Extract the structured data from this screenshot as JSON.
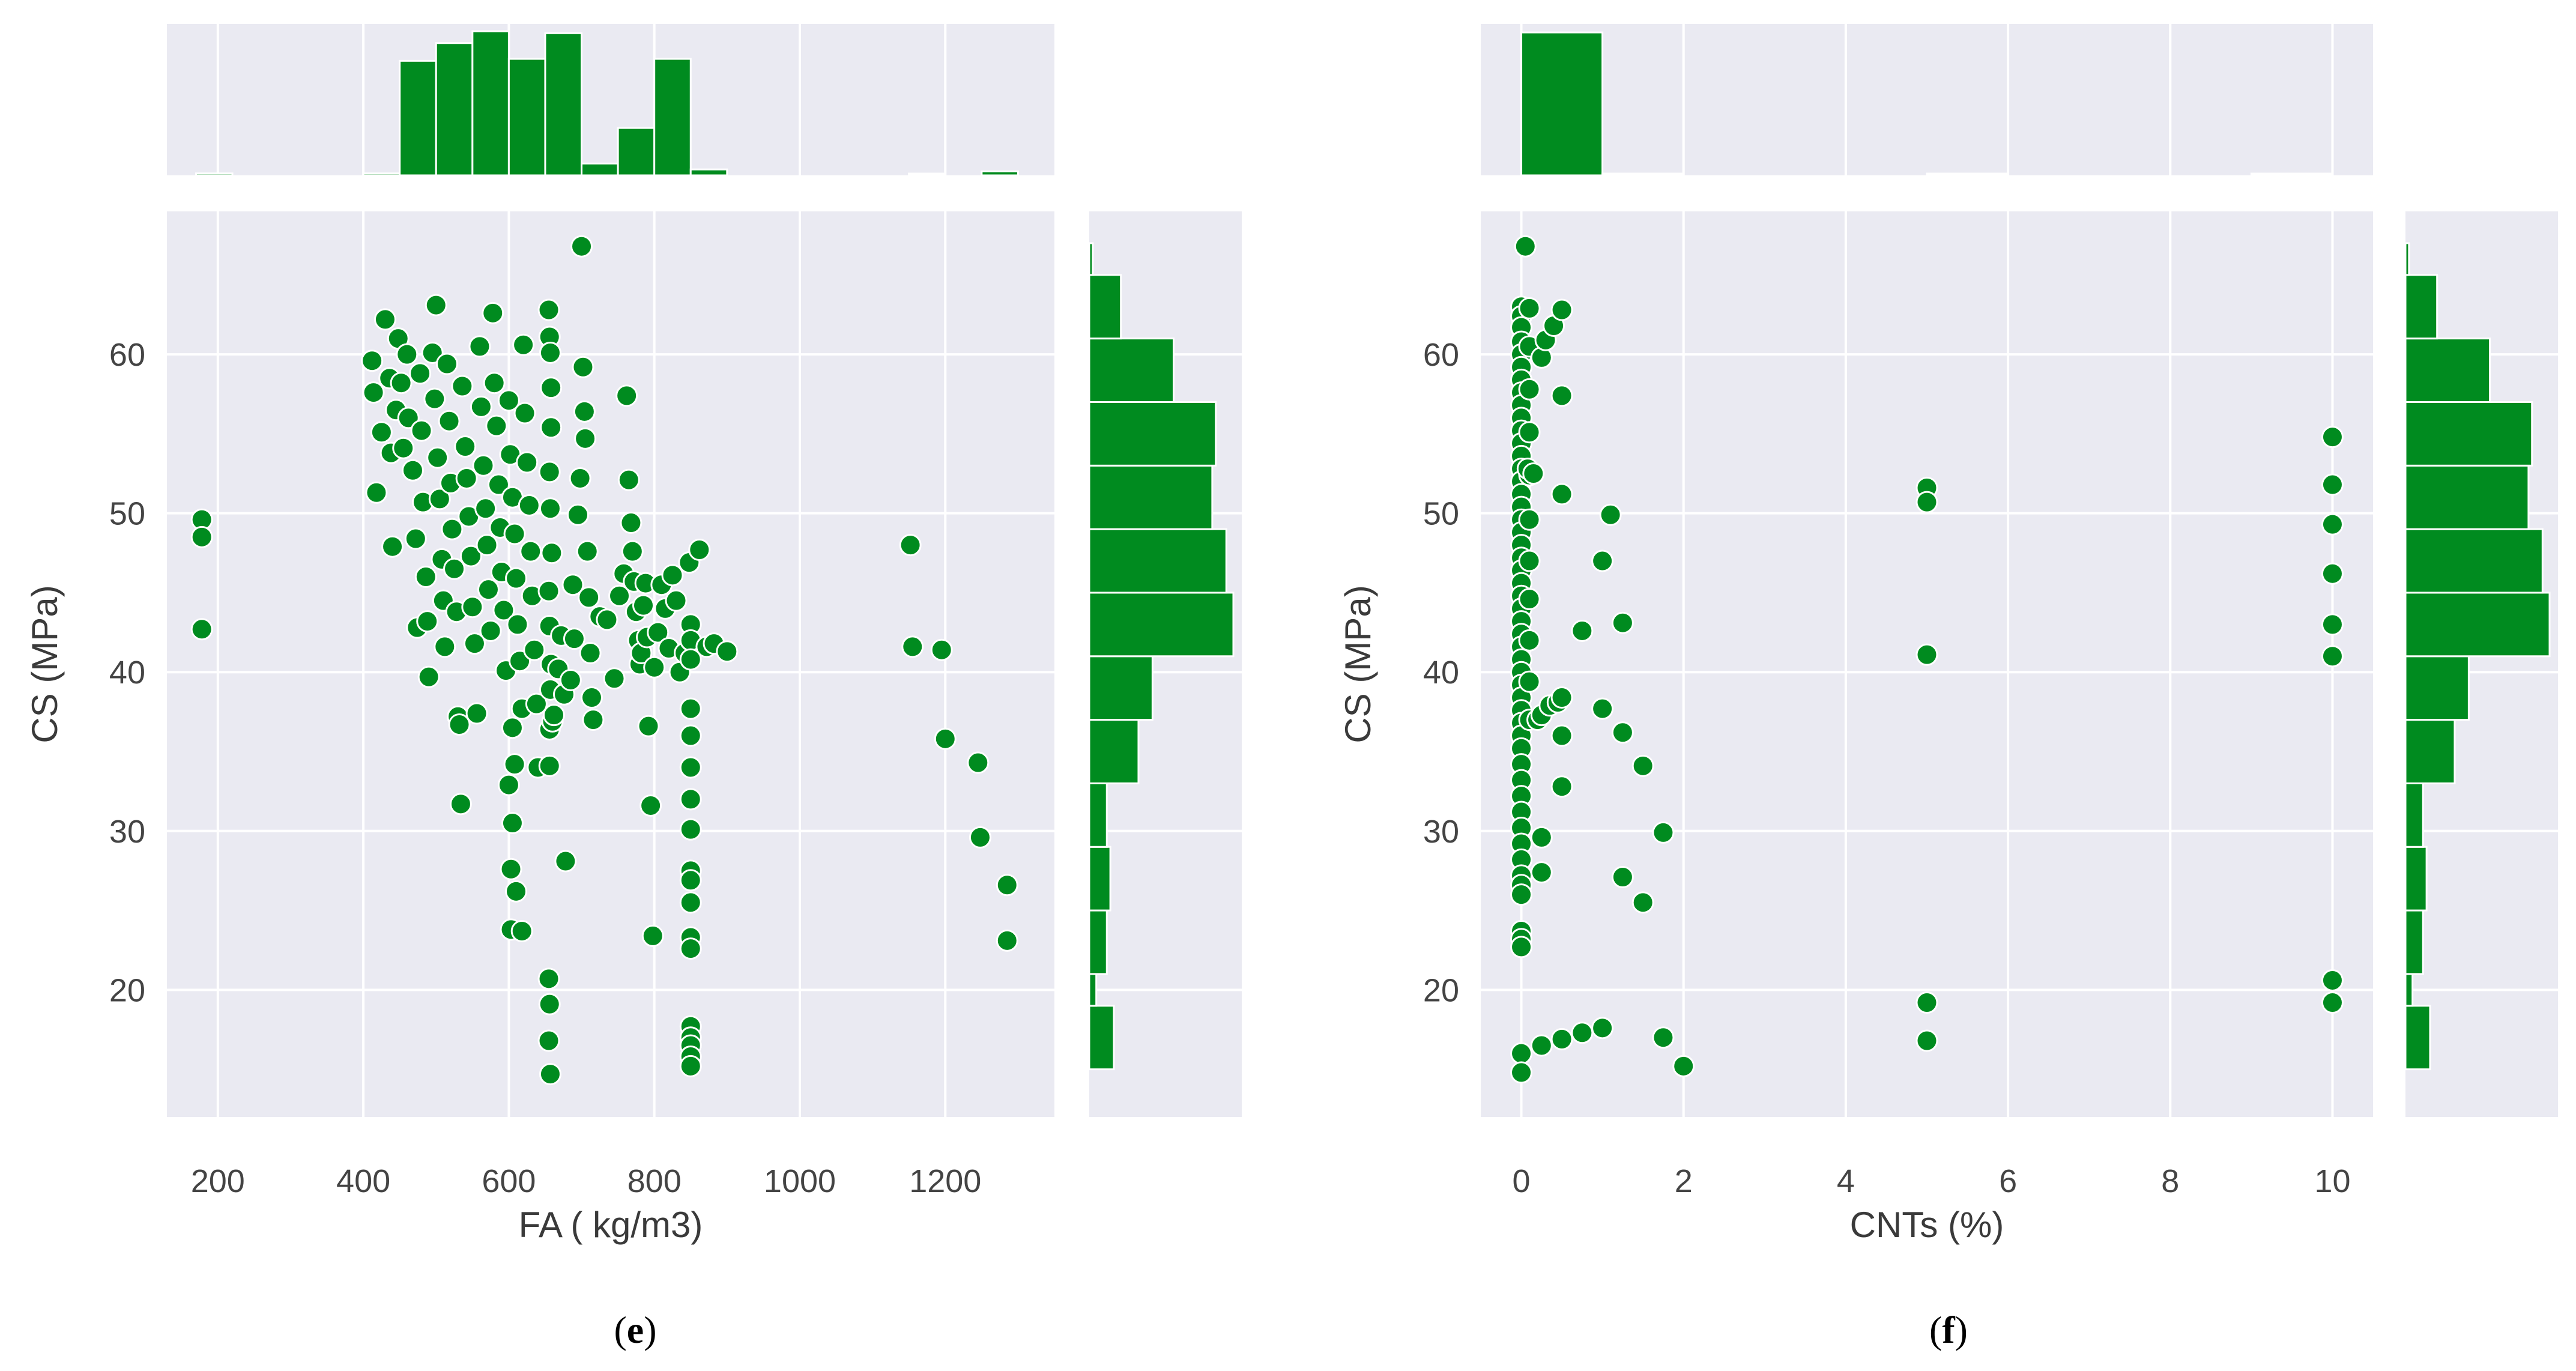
{
  "colors": {
    "face": "#eaeaf2",
    "grid": "#ffffff",
    "marker": "#008b1f",
    "marker_edge": "#ffffff"
  },
  "chart_data": [
    {
      "type": "scatter",
      "panel": "e",
      "caption": {
        "open": "(",
        "letter": "e",
        "close": ")"
      },
      "xlabel": "FA ( kg/m3)",
      "ylabel": "CS (MPa)",
      "xlim": [
        130,
        1350
      ],
      "ylim": [
        12,
        69
      ],
      "xticks": [
        200,
        400,
        600,
        800,
        1000,
        1200
      ],
      "yticks": [
        20,
        30,
        40,
        50,
        60
      ],
      "grid": true,
      "points": [
        [
          178,
          49.6
        ],
        [
          178,
          48.5
        ],
        [
          178,
          42.7
        ],
        [
          412,
          59.6
        ],
        [
          414,
          57.6
        ],
        [
          418,
          51.3
        ],
        [
          425,
          55.1
        ],
        [
          430,
          62.2
        ],
        [
          436,
          58.5
        ],
        [
          438,
          53.8
        ],
        [
          440,
          47.9
        ],
        [
          445,
          56.5
        ],
        [
          448,
          61.0
        ],
        [
          452,
          58.2
        ],
        [
          455,
          54.1
        ],
        [
          460,
          60.0
        ],
        [
          462,
          56.0
        ],
        [
          468,
          52.7
        ],
        [
          472,
          48.4
        ],
        [
          474,
          42.8
        ],
        [
          478,
          58.8
        ],
        [
          480,
          55.2
        ],
        [
          482,
          50.7
        ],
        [
          486,
          46.0
        ],
        [
          488,
          43.2
        ],
        [
          490,
          39.7
        ],
        [
          495,
          60.1
        ],
        [
          498,
          57.2
        ],
        [
          500,
          63.1
        ],
        [
          502,
          53.5
        ],
        [
          505,
          50.9
        ],
        [
          508,
          47.1
        ],
        [
          510,
          44.5
        ],
        [
          512,
          41.6
        ],
        [
          515,
          59.4
        ],
        [
          518,
          55.8
        ],
        [
          520,
          51.9
        ],
        [
          522,
          49.0
        ],
        [
          525,
          46.5
        ],
        [
          528,
          43.8
        ],
        [
          530,
          37.2
        ],
        [
          532,
          36.7
        ],
        [
          534,
          31.7
        ],
        [
          536,
          58.0
        ],
        [
          540,
          54.2
        ],
        [
          542,
          52.2
        ],
        [
          545,
          49.8
        ],
        [
          548,
          47.3
        ],
        [
          550,
          44.1
        ],
        [
          553,
          41.8
        ],
        [
          556,
          37.4
        ],
        [
          560,
          60.5
        ],
        [
          562,
          56.7
        ],
        [
          565,
          53.0
        ],
        [
          568,
          50.3
        ],
        [
          570,
          48.0
        ],
        [
          572,
          45.2
        ],
        [
          575,
          42.6
        ],
        [
          578,
          62.6
        ],
        [
          580,
          58.2
        ],
        [
          583,
          55.5
        ],
        [
          586,
          51.8
        ],
        [
          588,
          49.1
        ],
        [
          590,
          46.3
        ],
        [
          593,
          43.9
        ],
        [
          596,
          40.1
        ],
        [
          600,
          57.1
        ],
        [
          602,
          53.7
        ],
        [
          605,
          51.0
        ],
        [
          608,
          48.7
        ],
        [
          610,
          45.9
        ],
        [
          612,
          43.0
        ],
        [
          615,
          40.7
        ],
        [
          618,
          37.7
        ],
        [
          620,
          60.6
        ],
        [
          622,
          56.3
        ],
        [
          625,
          53.2
        ],
        [
          628,
          50.5
        ],
        [
          630,
          47.6
        ],
        [
          632,
          44.8
        ],
        [
          635,
          41.4
        ],
        [
          638,
          38.0
        ],
        [
          605,
          36.5
        ],
        [
          608,
          34.2
        ],
        [
          600,
          32.9
        ],
        [
          605,
          30.5
        ],
        [
          603,
          27.6
        ],
        [
          610,
          26.2
        ],
        [
          603,
          23.8
        ],
        [
          618,
          23.7
        ],
        [
          640,
          34.0
        ],
        [
          655,
          62.8
        ],
        [
          656,
          61.1
        ],
        [
          657,
          60.1
        ],
        [
          658,
          57.9
        ],
        [
          658,
          55.4
        ],
        [
          656,
          52.6
        ],
        [
          657,
          50.3
        ],
        [
          659,
          47.5
        ],
        [
          655,
          45.1
        ],
        [
          656,
          42.9
        ],
        [
          658,
          40.5
        ],
        [
          657,
          38.9
        ],
        [
          656,
          36.4
        ],
        [
          660,
          36.9
        ],
        [
          662,
          37.3
        ],
        [
          656,
          34.1
        ],
        [
          655,
          20.7
        ],
        [
          656,
          19.1
        ],
        [
          655,
          16.8
        ],
        [
          657,
          14.7
        ],
        [
          668,
          40.2
        ],
        [
          672,
          42.3
        ],
        [
          676,
          38.6
        ],
        [
          678,
          28.1
        ],
        [
          685,
          39.5
        ],
        [
          688,
          45.5
        ],
        [
          690,
          42.1
        ],
        [
          695,
          49.9
        ],
        [
          698,
          52.2
        ],
        [
          700,
          66.8
        ],
        [
          702,
          59.2
        ],
        [
          704,
          56.4
        ],
        [
          705,
          54.7
        ],
        [
          708,
          47.6
        ],
        [
          710,
          44.7
        ],
        [
          712,
          41.2
        ],
        [
          714,
          38.4
        ],
        [
          716,
          37.0
        ],
        [
          725,
          43.5
        ],
        [
          735,
          43.3
        ],
        [
          745,
          39.6
        ],
        [
          752,
          44.8
        ],
        [
          758,
          46.2
        ],
        [
          762,
          57.4
        ],
        [
          765,
          52.1
        ],
        [
          768,
          49.4
        ],
        [
          770,
          47.6
        ],
        [
          772,
          45.7
        ],
        [
          775,
          43.8
        ],
        [
          778,
          42.0
        ],
        [
          780,
          40.5
        ],
        [
          782,
          41.2
        ],
        [
          785,
          44.2
        ],
        [
          788,
          45.6
        ],
        [
          790,
          42.2
        ],
        [
          792,
          36.6
        ],
        [
          795,
          31.6
        ],
        [
          798,
          23.4
        ],
        [
          800,
          40.3
        ],
        [
          805,
          42.5
        ],
        [
          810,
          45.5
        ],
        [
          815,
          44.0
        ],
        [
          820,
          41.5
        ],
        [
          825,
          46.1
        ],
        [
          830,
          44.5
        ],
        [
          835,
          40.0
        ],
        [
          842,
          41.2
        ],
        [
          848,
          46.9
        ],
        [
          850,
          43.0
        ],
        [
          850,
          42.0
        ],
        [
          850,
          40.8
        ],
        [
          850,
          37.7
        ],
        [
          850,
          36.0
        ],
        [
          850,
          34.0
        ],
        [
          850,
          32.0
        ],
        [
          850,
          30.1
        ],
        [
          850,
          27.5
        ],
        [
          850,
          26.9
        ],
        [
          850,
          25.5
        ],
        [
          850,
          23.3
        ],
        [
          850,
          22.6
        ],
        [
          850,
          17.7
        ],
        [
          850,
          17.0
        ],
        [
          850,
          16.5
        ],
        [
          850,
          15.8
        ],
        [
          850,
          15.2
        ],
        [
          862,
          47.7
        ],
        [
          872,
          41.6
        ],
        [
          882,
          41.8
        ],
        [
          900,
          41.3
        ],
        [
          1152,
          48.0
        ],
        [
          1155,
          41.6
        ],
        [
          1195,
          41.4
        ],
        [
          1200,
          35.8
        ],
        [
          1245,
          34.3
        ],
        [
          1248,
          29.6
        ],
        [
          1285,
          26.6
        ],
        [
          1285,
          23.1
        ]
      ],
      "top_hist": {
        "bins": [
          [
            170,
            220
          ],
          [
            400,
            450
          ],
          [
            450,
            500
          ],
          [
            500,
            550
          ],
          [
            550,
            600
          ],
          [
            600,
            650
          ],
          [
            650,
            700
          ],
          [
            700,
            750
          ],
          [
            750,
            800
          ],
          [
            800,
            850
          ],
          [
            850,
            900
          ],
          [
            1150,
            1200
          ],
          [
            1250,
            1300
          ]
        ],
        "counts": [
          1,
          1,
          58,
          67,
          73,
          59,
          72,
          6,
          24,
          59,
          3,
          0.5,
          2
        ]
      },
      "side_hist": {
        "bins": [
          [
            15,
            19
          ],
          [
            19,
            21
          ],
          [
            21,
            25
          ],
          [
            25,
            29
          ],
          [
            29,
            33
          ],
          [
            33,
            37
          ],
          [
            37,
            41
          ],
          [
            41,
            45
          ],
          [
            45,
            49
          ],
          [
            49,
            53
          ],
          [
            53,
            57
          ],
          [
            57,
            61
          ],
          [
            61,
            65
          ],
          [
            65,
            67
          ]
        ],
        "counts": [
          7,
          2,
          5,
          6,
          5,
          14,
          18,
          41,
          39,
          35,
          36,
          24,
          9,
          1
        ]
      }
    },
    {
      "type": "scatter",
      "panel": "f",
      "caption": {
        "open": "(",
        "letter": "f",
        "close": ")"
      },
      "xlabel": "CNTs (%)",
      "ylabel": "CS (MPa)",
      "xlim": [
        -0.5,
        10.5
      ],
      "ylim": [
        12,
        69
      ],
      "xticks": [
        0,
        2,
        4,
        6,
        8,
        10
      ],
      "yticks": [
        20,
        30,
        40,
        50,
        60
      ],
      "grid": true,
      "points": [
        [
          0.05,
          66.8
        ],
        [
          0,
          63.0
        ],
        [
          0,
          62.4
        ],
        [
          0,
          61.7
        ],
        [
          0,
          60.8
        ],
        [
          0,
          60.0
        ],
        [
          0,
          59.2
        ],
        [
          0,
          58.4
        ],
        [
          0,
          57.6
        ],
        [
          0,
          56.8
        ],
        [
          0,
          56.0
        ],
        [
          0,
          55.2
        ],
        [
          0,
          54.4
        ],
        [
          0,
          53.6
        ],
        [
          0,
          52.8
        ],
        [
          0,
          52.0
        ],
        [
          0,
          51.2
        ],
        [
          0,
          50.4
        ],
        [
          0,
          49.6
        ],
        [
          0,
          48.8
        ],
        [
          0,
          48.0
        ],
        [
          0,
          47.2
        ],
        [
          0,
          46.4
        ],
        [
          0,
          45.6
        ],
        [
          0,
          44.8
        ],
        [
          0,
          44.0
        ],
        [
          0,
          43.2
        ],
        [
          0,
          42.4
        ],
        [
          0,
          41.6
        ],
        [
          0,
          40.8
        ],
        [
          0,
          40.0
        ],
        [
          0,
          39.2
        ],
        [
          0,
          38.4
        ],
        [
          0,
          37.6
        ],
        [
          0,
          36.8
        ],
        [
          0,
          36.0
        ],
        [
          0,
          35.2
        ],
        [
          0,
          34.2
        ],
        [
          0,
          33.2
        ],
        [
          0,
          32.2
        ],
        [
          0,
          31.2
        ],
        [
          0,
          30.2
        ],
        [
          0,
          29.2
        ],
        [
          0,
          28.2
        ],
        [
          0,
          27.2
        ],
        [
          0,
          26.6
        ],
        [
          0,
          26.0
        ],
        [
          0,
          23.7
        ],
        [
          0,
          23.2
        ],
        [
          0,
          22.7
        ],
        [
          0,
          16.0
        ],
        [
          0,
          14.8
        ],
        [
          0.1,
          62.9
        ],
        [
          0.1,
          60.5
        ],
        [
          0.1,
          57.8
        ],
        [
          0.1,
          55.1
        ],
        [
          0.1,
          52.4
        ],
        [
          0.1,
          49.6
        ],
        [
          0.1,
          47.0
        ],
        [
          0.1,
          44.6
        ],
        [
          0.1,
          42.0
        ],
        [
          0.1,
          39.4
        ],
        [
          0.1,
          37.0
        ],
        [
          0.08,
          52.8
        ],
        [
          0.15,
          52.5
        ],
        [
          0.2,
          37.0
        ],
        [
          0.25,
          59.8
        ],
        [
          0.25,
          37.3
        ],
        [
          0.25,
          29.6
        ],
        [
          0.25,
          27.4
        ],
        [
          0.25,
          16.5
        ],
        [
          0.3,
          60.9
        ],
        [
          0.35,
          37.9
        ],
        [
          0.4,
          61.8
        ],
        [
          0.45,
          38.1
        ],
        [
          0.5,
          62.8
        ],
        [
          0.5,
          57.4
        ],
        [
          0.5,
          51.2
        ],
        [
          0.5,
          38.4
        ],
        [
          0.5,
          36.0
        ],
        [
          0.5,
          32.8
        ],
        [
          0.5,
          16.9
        ],
        [
          0.75,
          42.6
        ],
        [
          0.75,
          17.3
        ],
        [
          1.0,
          47.0
        ],
        [
          1.0,
          37.7
        ],
        [
          1.0,
          17.6
        ],
        [
          1.1,
          49.9
        ],
        [
          1.25,
          43.1
        ],
        [
          1.25,
          36.2
        ],
        [
          1.25,
          27.1
        ],
        [
          1.5,
          34.1
        ],
        [
          1.5,
          25.5
        ],
        [
          1.75,
          29.9
        ],
        [
          1.75,
          17.0
        ],
        [
          2.0,
          15.2
        ],
        [
          5,
          51.6
        ],
        [
          5,
          50.7
        ],
        [
          5,
          41.1
        ],
        [
          5,
          19.2
        ],
        [
          5,
          16.8
        ],
        [
          10,
          54.8
        ],
        [
          10,
          51.8
        ],
        [
          10,
          49.3
        ],
        [
          10,
          46.2
        ],
        [
          10,
          43.0
        ],
        [
          10,
          41.0
        ],
        [
          10,
          20.6
        ],
        [
          10,
          19.2
        ]
      ],
      "top_hist": {
        "bins": [
          [
            0,
            1
          ],
          [
            1,
            2
          ],
          [
            5,
            6
          ],
          [
            9,
            10
          ]
        ],
        "counts": [
          100,
          0.6,
          0.4,
          0.9
        ]
      },
      "side_hist": {
        "bins": [
          [
            15,
            19
          ],
          [
            19,
            21
          ],
          [
            21,
            25
          ],
          [
            25,
            29
          ],
          [
            29,
            33
          ],
          [
            33,
            37
          ],
          [
            37,
            41
          ],
          [
            41,
            45
          ],
          [
            45,
            49
          ],
          [
            49,
            53
          ],
          [
            53,
            57
          ],
          [
            57,
            61
          ],
          [
            61,
            65
          ],
          [
            65,
            67
          ]
        ],
        "counts": [
          7,
          2,
          5,
          6,
          5,
          14,
          18,
          41,
          39,
          35,
          36,
          24,
          9,
          1
        ]
      }
    }
  ]
}
